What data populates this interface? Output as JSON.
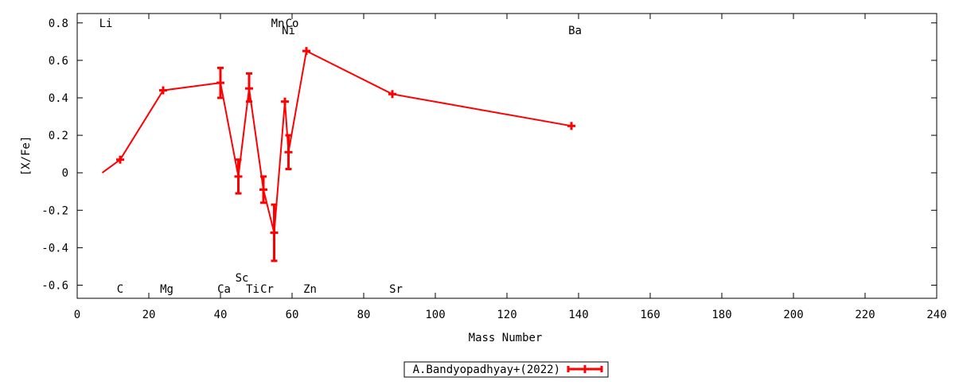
{
  "chart_data": {
    "type": "line",
    "xlabel": "Mass Number",
    "ylabel": "[X/Fe]",
    "xlim": [
      0,
      240
    ],
    "ylim": [
      -0.67,
      0.85
    ],
    "xticks": [
      "0",
      "20",
      "40",
      "60",
      "80",
      "100",
      "120",
      "140",
      "160",
      "180",
      "200",
      "220",
      "240"
    ],
    "xtick_values": [
      0,
      20,
      40,
      60,
      80,
      100,
      120,
      140,
      160,
      180,
      200,
      220,
      240
    ],
    "yticks": [
      "-0.6",
      "-0.4",
      "-0.2",
      "0",
      "0.2",
      "0.4",
      "0.6",
      "0.8"
    ],
    "ytick_values": [
      -0.6,
      -0.4,
      -0.2,
      0,
      0.2,
      0.4,
      0.6,
      0.8
    ],
    "grid": false,
    "legend": "bottom-center",
    "series_color": "#ff0000",
    "series": [
      {
        "name": "A.Bandyopadhyay+(2022)",
        "points": [
          {
            "x": 7,
            "y": 0.0
          },
          {
            "x": 12,
            "y": 0.07
          },
          {
            "x": 24,
            "y": 0.44
          },
          {
            "x": 40,
            "y": 0.48,
            "ylo": 0.4,
            "yhi": 0.56
          },
          {
            "x": 45,
            "y": -0.02,
            "ylo": -0.11,
            "yhi": 0.07
          },
          {
            "x": 48,
            "y": 0.45,
            "ylo": 0.38,
            "yhi": 0.53
          },
          {
            "x": 52,
            "y": -0.09,
            "ylo": -0.16,
            "yhi": -0.02
          },
          {
            "x": 55,
            "y": -0.32,
            "ylo": -0.47,
            "yhi": -0.17
          },
          {
            "x": 58,
            "y": 0.38
          },
          {
            "x": 59,
            "y": 0.11,
            "ylo": 0.02,
            "yhi": 0.2
          },
          {
            "x": 64,
            "y": 0.65
          },
          {
            "x": 88,
            "y": 0.42
          },
          {
            "x": 138,
            "y": 0.25
          }
        ]
      }
    ],
    "element_labels": [
      {
        "text": "Li",
        "x": 8,
        "y": 0.8
      },
      {
        "text": "C",
        "x": 12,
        "y": -0.62
      },
      {
        "text": "Mg",
        "x": 25,
        "y": -0.62
      },
      {
        "text": "Ca",
        "x": 41,
        "y": -0.62
      },
      {
        "text": "Sc",
        "x": 46,
        "y": -0.56
      },
      {
        "text": "Ti",
        "x": 49,
        "y": -0.62
      },
      {
        "text": "Cr",
        "x": 53,
        "y": -0.62
      },
      {
        "text": "Mn",
        "x": 56,
        "y": 0.8
      },
      {
        "text": "Co",
        "x": 60,
        "y": 0.8
      },
      {
        "text": "Ni",
        "x": 59,
        "y": 0.76
      },
      {
        "text": "Zn",
        "x": 65,
        "y": -0.62
      },
      {
        "text": "Sr",
        "x": 89,
        "y": -0.62
      },
      {
        "text": "Ba",
        "x": 139,
        "y": 0.76
      }
    ]
  }
}
